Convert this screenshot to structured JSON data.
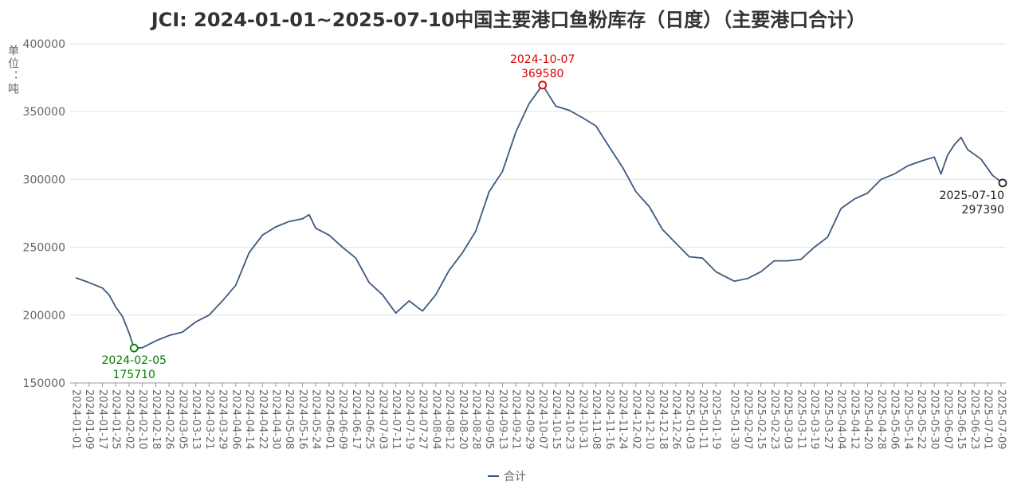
{
  "chart_data": {
    "type": "line",
    "title": "JCI: 2024-01-01~2025-07-10中国主要港口鱼粉库存（日度）（主要港口合计）",
    "y_label": "单位：吨",
    "x": [
      "2024-01-01",
      "2024-01-09",
      "2024-01-17",
      "2024-01-21",
      "2024-01-25",
      "2024-01-29",
      "2024-02-02",
      "2024-02-05",
      "2024-02-10",
      "2024-02-18",
      "2024-02-26",
      "2024-03-05",
      "2024-03-13",
      "2024-03-21",
      "2024-03-29",
      "2024-04-06",
      "2024-04-14",
      "2024-04-22",
      "2024-04-30",
      "2024-05-08",
      "2024-05-16",
      "2024-05-20",
      "2024-05-24",
      "2024-06-01",
      "2024-06-09",
      "2024-06-17",
      "2024-06-25",
      "2024-07-03",
      "2024-07-11",
      "2024-07-19",
      "2024-07-27",
      "2024-08-04",
      "2024-08-12",
      "2024-08-20",
      "2024-08-28",
      "2024-09-05",
      "2024-09-13",
      "2024-09-21",
      "2024-09-29",
      "2024-10-07",
      "2024-10-15",
      "2024-10-23",
      "2024-10-31",
      "2024-11-08",
      "2024-11-16",
      "2024-11-24",
      "2024-12-02",
      "2024-12-10",
      "2024-12-18",
      "2024-12-26",
      "2025-01-03",
      "2025-01-11",
      "2025-01-19",
      "2025-01-30",
      "2025-02-07",
      "2025-02-15",
      "2025-02-23",
      "2025-03-03",
      "2025-03-11",
      "2025-03-19",
      "2025-03-27",
      "2025-04-04",
      "2025-04-12",
      "2025-04-20",
      "2025-04-28",
      "2025-05-06",
      "2025-05-14",
      "2025-05-22",
      "2025-05-30",
      "2025-06-03",
      "2025-06-07",
      "2025-06-11",
      "2025-06-15",
      "2025-06-19",
      "2025-06-27",
      "2025-07-04",
      "2025-07-10"
    ],
    "series": [
      {
        "name": "合计",
        "color": "#3d5a80",
        "values": [
          227500,
          224000,
          220000,
          215000,
          206000,
          199000,
          187000,
          175710,
          176000,
          181000,
          185000,
          187500,
          195000,
          200000,
          210500,
          222000,
          246000,
          259000,
          265000,
          269000,
          271000,
          274000,
          264000,
          259000,
          250000,
          242000,
          224000,
          215000,
          201500,
          210500,
          203000,
          215000,
          233000,
          246000,
          262000,
          291000,
          306000,
          335000,
          356000,
          369580,
          354000,
          351000,
          345500,
          339500,
          324000,
          309000,
          291000,
          280000,
          263000,
          253000,
          243000,
          242000,
          232000,
          225000,
          227000,
          232000,
          240000,
          240000,
          241000,
          250000,
          257500,
          278500,
          285500,
          290000,
          300000,
          304000,
          310000,
          313500,
          316500,
          304000,
          318000,
          325500,
          331000,
          322000,
          315000,
          303000,
          297390
        ]
      }
    ],
    "annotations": [
      {
        "x": "2024-10-07",
        "y": 369580,
        "color": "#e00000"
      },
      {
        "x": "2024-02-05",
        "y": 175710,
        "color": "#008000"
      },
      {
        "x": "2025-07-10",
        "y": 297390,
        "color": "#222222"
      }
    ],
    "xlim": [
      "2024-01-01",
      "2025-07-10"
    ],
    "ylim": [
      150000,
      400000
    ],
    "yticks": [
      150000,
      200000,
      250000,
      300000,
      350000,
      400000
    ],
    "xticks": [
      "2024-01-01",
      "2024-01-09",
      "2024-01-17",
      "2024-01-25",
      "2024-02-02",
      "2024-02-10",
      "2024-02-18",
      "2024-02-26",
      "2024-03-05",
      "2024-03-13",
      "2024-03-21",
      "2024-03-29",
      "2024-04-06",
      "2024-04-14",
      "2024-04-22",
      "2024-04-30",
      "2024-05-08",
      "2024-05-16",
      "2024-05-24",
      "2024-06-01",
      "2024-06-09",
      "2024-06-17",
      "2024-06-25",
      "2024-07-03",
      "2024-07-11",
      "2024-07-19",
      "2024-07-27",
      "2024-08-04",
      "2024-08-12",
      "2024-08-20",
      "2024-08-28",
      "2024-09-05",
      "2024-09-13",
      "2024-09-21",
      "2024-09-29",
      "2024-10-07",
      "2024-10-15",
      "2024-10-23",
      "2024-10-31",
      "2024-11-08",
      "2024-11-16",
      "2024-11-24",
      "2024-12-02",
      "2024-12-10",
      "2024-12-18",
      "2024-12-26",
      "2025-01-03",
      "2025-01-11",
      "2025-01-19",
      "2025-01-30",
      "2025-02-07",
      "2025-02-15",
      "2025-02-23",
      "2025-03-03",
      "2025-03-11",
      "2025-03-19",
      "2025-03-27",
      "2025-04-04",
      "2025-04-12",
      "2025-04-20",
      "2025-04-28",
      "2025-05-06",
      "2025-05-14",
      "2025-05-22",
      "2025-05-30",
      "2025-06-07",
      "2025-06-15",
      "2025-06-23",
      "2025-07-01",
      "2025-07-09"
    ],
    "grid": true,
    "legend": "bottom"
  }
}
